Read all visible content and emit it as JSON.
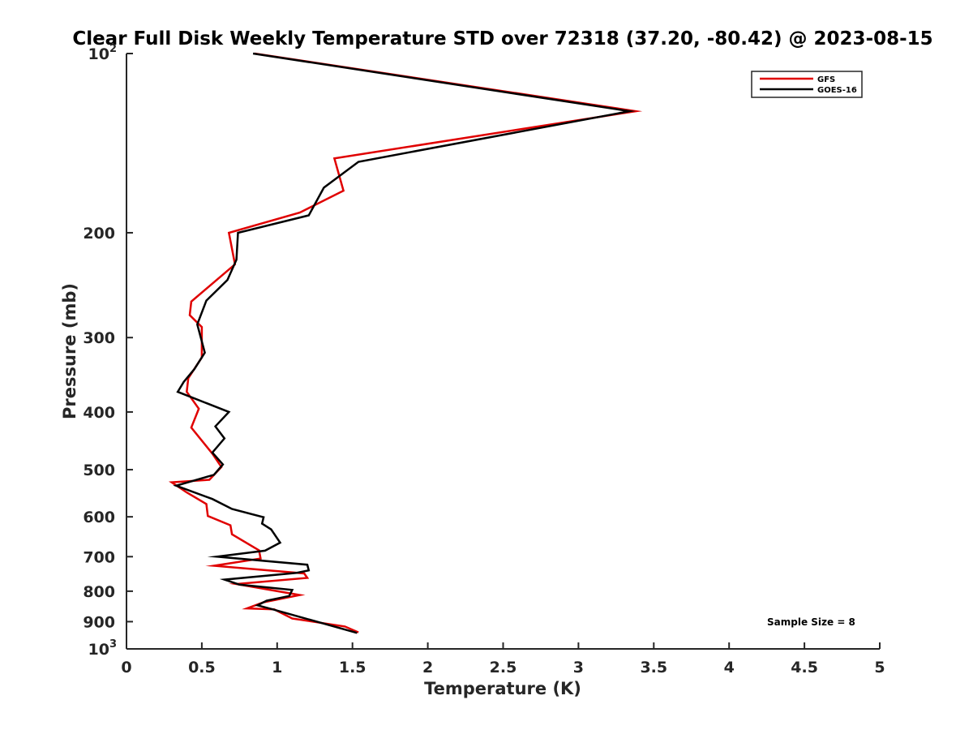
{
  "chart_data": {
    "type": "line",
    "title": "Clear Full Disk Weekly Temperature STD over 72318 (37.20, -80.42) @ 2023-08-15",
    "xlabel": "Temperature (K)",
    "ylabel": "Pressure (mb)",
    "xlim": [
      0,
      5
    ],
    "ylim": [
      100,
      1000
    ],
    "y_scale": "log",
    "y_reversed": true,
    "x_ticks": [
      0,
      0.5,
      1,
      1.5,
      2,
      2.5,
      3,
      3.5,
      4,
      4.5,
      5
    ],
    "x_tick_labels": [
      "0",
      "0.5",
      "1",
      "1.5",
      "2",
      "2.5",
      "3",
      "3.5",
      "4",
      "4.5",
      "5"
    ],
    "y_ticks": [
      200,
      300,
      400,
      500,
      600,
      700,
      800,
      900
    ],
    "y_tick_labels": [
      "200",
      "300",
      "400",
      "500",
      "600",
      "700",
      "800",
      "900"
    ],
    "y_end_labels": [
      {
        "value": 100,
        "base": "10",
        "exp": "2"
      },
      {
        "value": 1000,
        "base": "10",
        "exp": "3"
      }
    ],
    "grid": false,
    "legend_position": "top-right",
    "annotation": "Sample Size = 8",
    "series": [
      {
        "name": "GFS",
        "color": "#e00000",
        "points": [
          [
            0.85,
            100
          ],
          [
            3.38,
            125
          ],
          [
            1.38,
            150
          ],
          [
            1.44,
            170
          ],
          [
            1.15,
            185
          ],
          [
            0.68,
            200
          ],
          [
            0.72,
            226
          ],
          [
            0.43,
            261
          ],
          [
            0.42,
            275
          ],
          [
            0.5,
            288
          ],
          [
            0.5,
            324
          ],
          [
            0.41,
            351
          ],
          [
            0.4,
            370
          ],
          [
            0.48,
            395
          ],
          [
            0.43,
            425
          ],
          [
            0.57,
            470
          ],
          [
            0.63,
            495
          ],
          [
            0.55,
            520
          ],
          [
            0.3,
            525
          ],
          [
            0.4,
            546
          ],
          [
            0.53,
            571
          ],
          [
            0.54,
            598
          ],
          [
            0.69,
            620
          ],
          [
            0.7,
            642
          ],
          [
            0.88,
            683
          ],
          [
            0.89,
            705
          ],
          [
            0.58,
            725
          ],
          [
            1.18,
            747
          ],
          [
            1.2,
            760
          ],
          [
            0.73,
            778
          ],
          [
            1.15,
            812
          ],
          [
            0.91,
            835
          ],
          [
            0.8,
            855
          ],
          [
            0.98,
            858
          ],
          [
            1.1,
            889
          ],
          [
            1.45,
            917
          ],
          [
            1.54,
            938
          ]
        ]
      },
      {
        "name": "GOES-16",
        "color": "#000000",
        "points": [
          [
            0.84,
            100
          ],
          [
            3.34,
            125
          ],
          [
            1.54,
            152
          ],
          [
            1.31,
            168
          ],
          [
            1.21,
            187
          ],
          [
            0.74,
            200
          ],
          [
            0.73,
            222
          ],
          [
            0.67,
            240
          ],
          [
            0.53,
            260
          ],
          [
            0.47,
            285
          ],
          [
            0.52,
            318
          ],
          [
            0.45,
            339
          ],
          [
            0.38,
            356
          ],
          [
            0.34,
            370
          ],
          [
            0.68,
            400
          ],
          [
            0.59,
            423
          ],
          [
            0.65,
            443
          ],
          [
            0.57,
            468
          ],
          [
            0.64,
            490
          ],
          [
            0.58,
            510
          ],
          [
            0.33,
            532
          ],
          [
            0.57,
            560
          ],
          [
            0.7,
            582
          ],
          [
            0.91,
            601
          ],
          [
            0.9,
            616
          ],
          [
            0.96,
            630
          ],
          [
            1.02,
            663
          ],
          [
            0.92,
            684
          ],
          [
            0.6,
            700
          ],
          [
            1.2,
            722
          ],
          [
            1.21,
            738
          ],
          [
            1.13,
            745
          ],
          [
            0.65,
            765
          ],
          [
            0.75,
            780
          ],
          [
            1.1,
            796
          ],
          [
            1.08,
            815
          ],
          [
            0.93,
            830
          ],
          [
            0.87,
            845
          ],
          [
            0.97,
            858
          ],
          [
            1.53,
            940
          ]
        ]
      }
    ]
  }
}
